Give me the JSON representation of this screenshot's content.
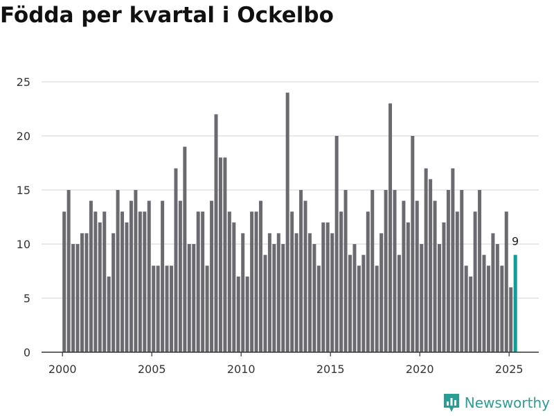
{
  "title": "Födda per kvartal i Ockelbo",
  "brand": {
    "name": "Newsworthy",
    "icon": "newsworthy-logo-icon",
    "color": "#2a9d95"
  },
  "chart_data": {
    "type": "bar",
    "ylim": [
      0,
      25
    ],
    "yticks": [
      "0",
      "5",
      "10",
      "15",
      "20",
      "25"
    ],
    "xticks": [
      "2000",
      "2005",
      "2010",
      "2015",
      "2020",
      "2025"
    ],
    "grid": true,
    "bar_color": "#6b6a70",
    "highlight_color": "#0d9e97",
    "highlight_label": "9",
    "categories": [
      "2000 Q1",
      "2000 Q2",
      "2000 Q3",
      "2000 Q4",
      "2001 Q1",
      "2001 Q2",
      "2001 Q3",
      "2001 Q4",
      "2002 Q1",
      "2002 Q2",
      "2002 Q3",
      "2002 Q4",
      "2003 Q1",
      "2003 Q2",
      "2003 Q3",
      "2003 Q4",
      "2004 Q1",
      "2004 Q2",
      "2004 Q3",
      "2004 Q4",
      "2005 Q1",
      "2005 Q2",
      "2005 Q3",
      "2005 Q4",
      "2006 Q1",
      "2006 Q2",
      "2006 Q3",
      "2006 Q4",
      "2007 Q1",
      "2007 Q2",
      "2007 Q3",
      "2007 Q4",
      "2008 Q1",
      "2008 Q2",
      "2008 Q3",
      "2008 Q4",
      "2009 Q1",
      "2009 Q2",
      "2009 Q3",
      "2009 Q4",
      "2010 Q1",
      "2010 Q2",
      "2010 Q3",
      "2010 Q4",
      "2011 Q1",
      "2011 Q2",
      "2011 Q3",
      "2011 Q4",
      "2012 Q1",
      "2012 Q2",
      "2012 Q3",
      "2012 Q4",
      "2013 Q1",
      "2013 Q2",
      "2013 Q3",
      "2013 Q4",
      "2014 Q1",
      "2014 Q2",
      "2014 Q3",
      "2014 Q4",
      "2015 Q1",
      "2015 Q2",
      "2015 Q3",
      "2015 Q4",
      "2016 Q1",
      "2016 Q2",
      "2016 Q3",
      "2016 Q4",
      "2017 Q1",
      "2017 Q2",
      "2017 Q3",
      "2017 Q4",
      "2018 Q1",
      "2018 Q2",
      "2018 Q3",
      "2018 Q4",
      "2019 Q1",
      "2019 Q2",
      "2019 Q3",
      "2019 Q4",
      "2020 Q1",
      "2020 Q2",
      "2020 Q3",
      "2020 Q4",
      "2021 Q1",
      "2021 Q2",
      "2021 Q3",
      "2021 Q4",
      "2022 Q1",
      "2022 Q2",
      "2022 Q3",
      "2022 Q4",
      "2023 Q1",
      "2023 Q2",
      "2023 Q3",
      "2023 Q4",
      "2024 Q1",
      "2024 Q2",
      "2024 Q3",
      "2024 Q4",
      "2025 Q1",
      "2025 Q2"
    ],
    "values": [
      13,
      15,
      10,
      10,
      11,
      11,
      14,
      13,
      12,
      13,
      7,
      11,
      15,
      13,
      12,
      14,
      15,
      13,
      13,
      14,
      8,
      8,
      14,
      8,
      8,
      17,
      14,
      19,
      10,
      10,
      13,
      13,
      8,
      14,
      22,
      18,
      18,
      13,
      12,
      7,
      11,
      7,
      13,
      13,
      14,
      9,
      11,
      10,
      11,
      10,
      24,
      13,
      11,
      15,
      14,
      11,
      10,
      8,
      12,
      12,
      11,
      20,
      13,
      15,
      9,
      10,
      8,
      9,
      13,
      15,
      8,
      11,
      15,
      23,
      15,
      9,
      14,
      12,
      20,
      14,
      10,
      17,
      16,
      14,
      10,
      12,
      15,
      17,
      13,
      15,
      8,
      7,
      13,
      15,
      9,
      8,
      11,
      10,
      8,
      13,
      6,
      9
    ]
  }
}
